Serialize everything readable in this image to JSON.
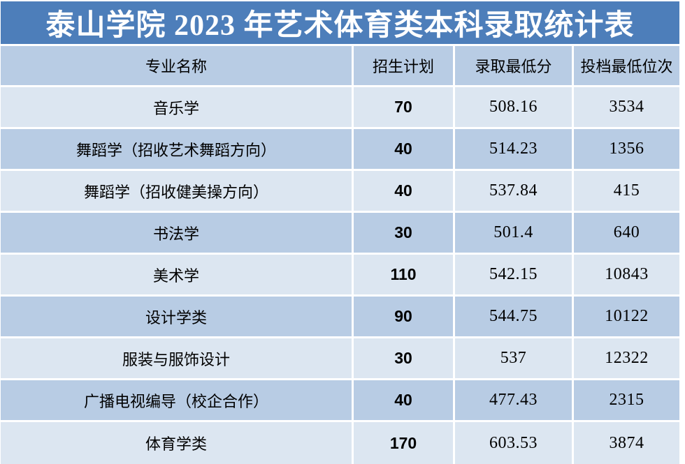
{
  "colors": {
    "title_bg": "#4d7eba",
    "row_dark": "#b8cce4",
    "row_light": "#dce6f1",
    "gap": "#ffffff",
    "title_text": "#ffffff",
    "body_text": "#000000"
  },
  "chart_data": {
    "type": "table",
    "title": "泰山学院 2023 年艺术体育类本科录取统计表",
    "columns": [
      "专业名称",
      "招生计划",
      "录取最低分",
      "投档最低位次"
    ],
    "rows": [
      [
        "音乐学",
        "70",
        "508.16",
        "3534"
      ],
      [
        "舞蹈学（招收艺术舞蹈方向）",
        "40",
        "514.23",
        "1356"
      ],
      [
        "舞蹈学（招收健美操方向）",
        "40",
        "537.84",
        "415"
      ],
      [
        "书法学",
        "30",
        "501.4",
        "640"
      ],
      [
        "美术学",
        "110",
        "542.15",
        "10843"
      ],
      [
        "设计学类",
        "90",
        "544.75",
        "10122"
      ],
      [
        "服装与服饰设计",
        "30",
        "537",
        "12322"
      ],
      [
        "广播电视编导（校企合作）",
        "40",
        "477.43",
        "2315"
      ],
      [
        "体育学类",
        "170",
        "603.53",
        "3874"
      ]
    ]
  }
}
